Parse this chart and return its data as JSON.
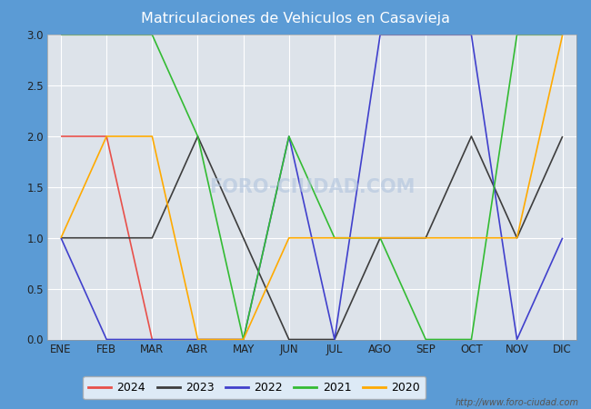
{
  "title": "Matriculaciones de Vehiculos en Casavieja",
  "title_color": "#ffffff",
  "title_bg_color": "#5b9bd5",
  "months": [
    "ENE",
    "FEB",
    "MAR",
    "ABR",
    "MAY",
    "JUN",
    "JUL",
    "AGO",
    "SEP",
    "OCT",
    "NOV",
    "DIC"
  ],
  "series": {
    "2024": {
      "color": "#e8504a",
      "data": [
        2,
        2,
        0,
        null,
        null,
        null,
        null,
        null,
        null,
        null,
        null,
        null
      ]
    },
    "2023": {
      "color": "#3d3d3d",
      "data": [
        1,
        1,
        1,
        2,
        1,
        0,
        0,
        1,
        1,
        2,
        1,
        2
      ]
    },
    "2022": {
      "color": "#4040cc",
      "data": [
        1,
        0,
        0,
        0,
        0,
        2,
        0,
        3,
        3,
        3,
        0,
        1
      ]
    },
    "2021": {
      "color": "#33bb33",
      "data": [
        3,
        3,
        3,
        2,
        0,
        2,
        1,
        1,
        0,
        0,
        3,
        3
      ]
    },
    "2020": {
      "color": "#ffaa00",
      "data": [
        1,
        2,
        2,
        0,
        0,
        1,
        1,
        1,
        1,
        1,
        1,
        3
      ]
    }
  },
  "legend_order": [
    "2024",
    "2023",
    "2022",
    "2021",
    "2020"
  ],
  "ylim": [
    0.0,
    3.0
  ],
  "yticks": [
    0.0,
    0.5,
    1.0,
    1.5,
    2.0,
    2.5,
    3.0
  ],
  "plot_bg_color": "#dde3ea",
  "grid_color": "#ffffff",
  "watermark": "http://www.foro-ciudad.com"
}
